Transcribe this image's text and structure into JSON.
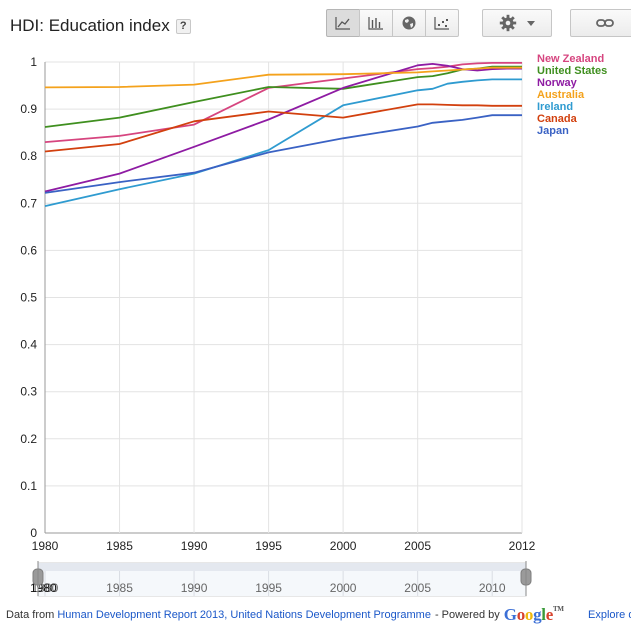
{
  "header": {
    "title": "HDI: Education index",
    "help_label": "?"
  },
  "toolbar": {
    "views": [
      {
        "name": "line-chart-icon",
        "active": true
      },
      {
        "name": "bar-chart-icon",
        "active": false
      },
      {
        "name": "map-icon",
        "active": false
      },
      {
        "name": "scatter-chart-icon",
        "active": false
      }
    ]
  },
  "chart_data": {
    "type": "line",
    "title": "HDI: Education index",
    "x_ticks": [
      "1980",
      "1985",
      "1990",
      "1995",
      "2000",
      "2005",
      "2012"
    ],
    "y_ticks": [
      "0",
      "0.1",
      "0.2",
      "0.3",
      "0.4",
      "0.5",
      "0.6",
      "0.7",
      "0.8",
      "0.9",
      "1"
    ],
    "xlim": [
      1980,
      2012
    ],
    "ylim": [
      0,
      1
    ],
    "grid": true,
    "legend_position": "right",
    "series": [
      {
        "name": "New Zealand",
        "color": "#d6457f",
        "x": [
          1980,
          1985,
          1990,
          1995,
          2000,
          2005,
          2006,
          2007,
          2008,
          2009,
          2010,
          2011,
          2012
        ],
        "values": [
          0.83,
          0.843,
          0.867,
          0.945,
          0.965,
          0.985,
          0.987,
          0.99,
          0.995,
          0.997,
          0.998,
          0.998,
          0.998
        ]
      },
      {
        "name": "United States",
        "color": "#3f8f1f",
        "x": [
          1980,
          1985,
          1990,
          1995,
          2000,
          2005,
          2006,
          2007,
          2008,
          2009,
          2010,
          2011,
          2012
        ],
        "values": [
          0.862,
          0.882,
          0.915,
          0.947,
          0.943,
          0.968,
          0.97,
          0.976,
          0.984,
          0.986,
          0.99,
          0.99,
          0.99
        ]
      },
      {
        "name": "Norway",
        "color": "#8e1ba3",
        "x": [
          1980,
          1985,
          1990,
          1995,
          2000,
          2005,
          2006,
          2007,
          2008,
          2009,
          2010,
          2011,
          2012
        ],
        "values": [
          0.725,
          0.763,
          0.82,
          0.878,
          0.945,
          0.993,
          0.996,
          0.992,
          0.985,
          0.982,
          0.985,
          0.986,
          0.986
        ]
      },
      {
        "name": "Australia",
        "color": "#f4a21c",
        "x": [
          1980,
          1985,
          1990,
          1995,
          2000,
          2005,
          2006,
          2007,
          2008,
          2009,
          2010,
          2011,
          2012
        ],
        "values": [
          0.946,
          0.947,
          0.952,
          0.973,
          0.974,
          0.978,
          0.98,
          0.982,
          0.984,
          0.986,
          0.988,
          0.988,
          0.988
        ]
      },
      {
        "name": "Ireland",
        "color": "#2f9bd0",
        "x": [
          1980,
          1985,
          1990,
          1995,
          2000,
          2005,
          2006,
          2007,
          2008,
          2009,
          2010,
          2011,
          2012
        ],
        "values": [
          0.694,
          0.73,
          0.763,
          0.813,
          0.908,
          0.94,
          0.943,
          0.954,
          0.958,
          0.961,
          0.963,
          0.963,
          0.963
        ]
      },
      {
        "name": "Canada",
        "color": "#d2400e",
        "x": [
          1980,
          1985,
          1990,
          1995,
          2000,
          2005,
          2006,
          2007,
          2008,
          2009,
          2010,
          2011,
          2012
        ],
        "values": [
          0.81,
          0.826,
          0.874,
          0.895,
          0.882,
          0.91,
          0.91,
          0.909,
          0.908,
          0.908,
          0.907,
          0.907,
          0.907
        ]
      },
      {
        "name": "Japan",
        "color": "#3a62c4",
        "x": [
          1980,
          1985,
          1990,
          1995,
          2000,
          2005,
          2006,
          2007,
          2008,
          2009,
          2010,
          2011,
          2012
        ],
        "values": [
          0.722,
          0.745,
          0.765,
          0.808,
          0.838,
          0.863,
          0.871,
          0.874,
          0.877,
          0.882,
          0.887,
          0.887,
          0.887
        ]
      }
    ]
  },
  "timeline": {
    "ticks": [
      "1980",
      "1985",
      "1990",
      "1995",
      "2000",
      "2005",
      "2010"
    ],
    "start_label": "1980"
  },
  "footer": {
    "data_from": "Data from",
    "source_link": "Human Development Report 2013, United Nations Development Programme",
    "powered_by": "- Powered by",
    "google_letters": [
      "G",
      "o",
      "o",
      "g",
      "l",
      "e"
    ],
    "tm": "TM",
    "explore_label": "Explore da"
  }
}
